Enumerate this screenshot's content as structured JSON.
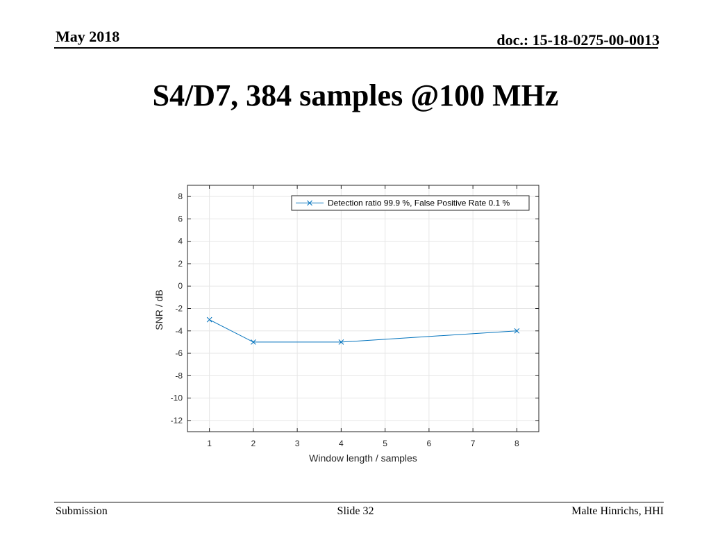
{
  "header": {
    "date": "May 2018",
    "doc": "doc.: 15-18-0275-00-0013"
  },
  "slide": {
    "title": "S4/D7, 384 samples @100 MHz"
  },
  "footer": {
    "left": "Submission",
    "center": "Slide 32",
    "right": "Malte Hinrichs, HHI"
  },
  "colors": {
    "series": "#0072BD",
    "grid": "#e6e6e6",
    "axis": "#262626"
  },
  "chart_data": {
    "type": "line",
    "title": "",
    "xlabel": "Window length / samples",
    "ylabel": "SNR / dB",
    "xlim": [
      0.5,
      8.5
    ],
    "ylim": [
      -13,
      9
    ],
    "x_ticks": [
      1,
      2,
      3,
      4,
      5,
      6,
      7,
      8
    ],
    "y_ticks": [
      8,
      6,
      4,
      2,
      0,
      -2,
      -4,
      -6,
      -8,
      -10,
      -12
    ],
    "grid": true,
    "legend_position": "top-right",
    "series": [
      {
        "name": "Detection ratio 99.9 %, False Positive Rate 0.1 %",
        "marker": "x",
        "x": [
          1,
          2,
          4,
          8
        ],
        "y": [
          -3,
          -5,
          -5,
          -4
        ]
      }
    ]
  }
}
